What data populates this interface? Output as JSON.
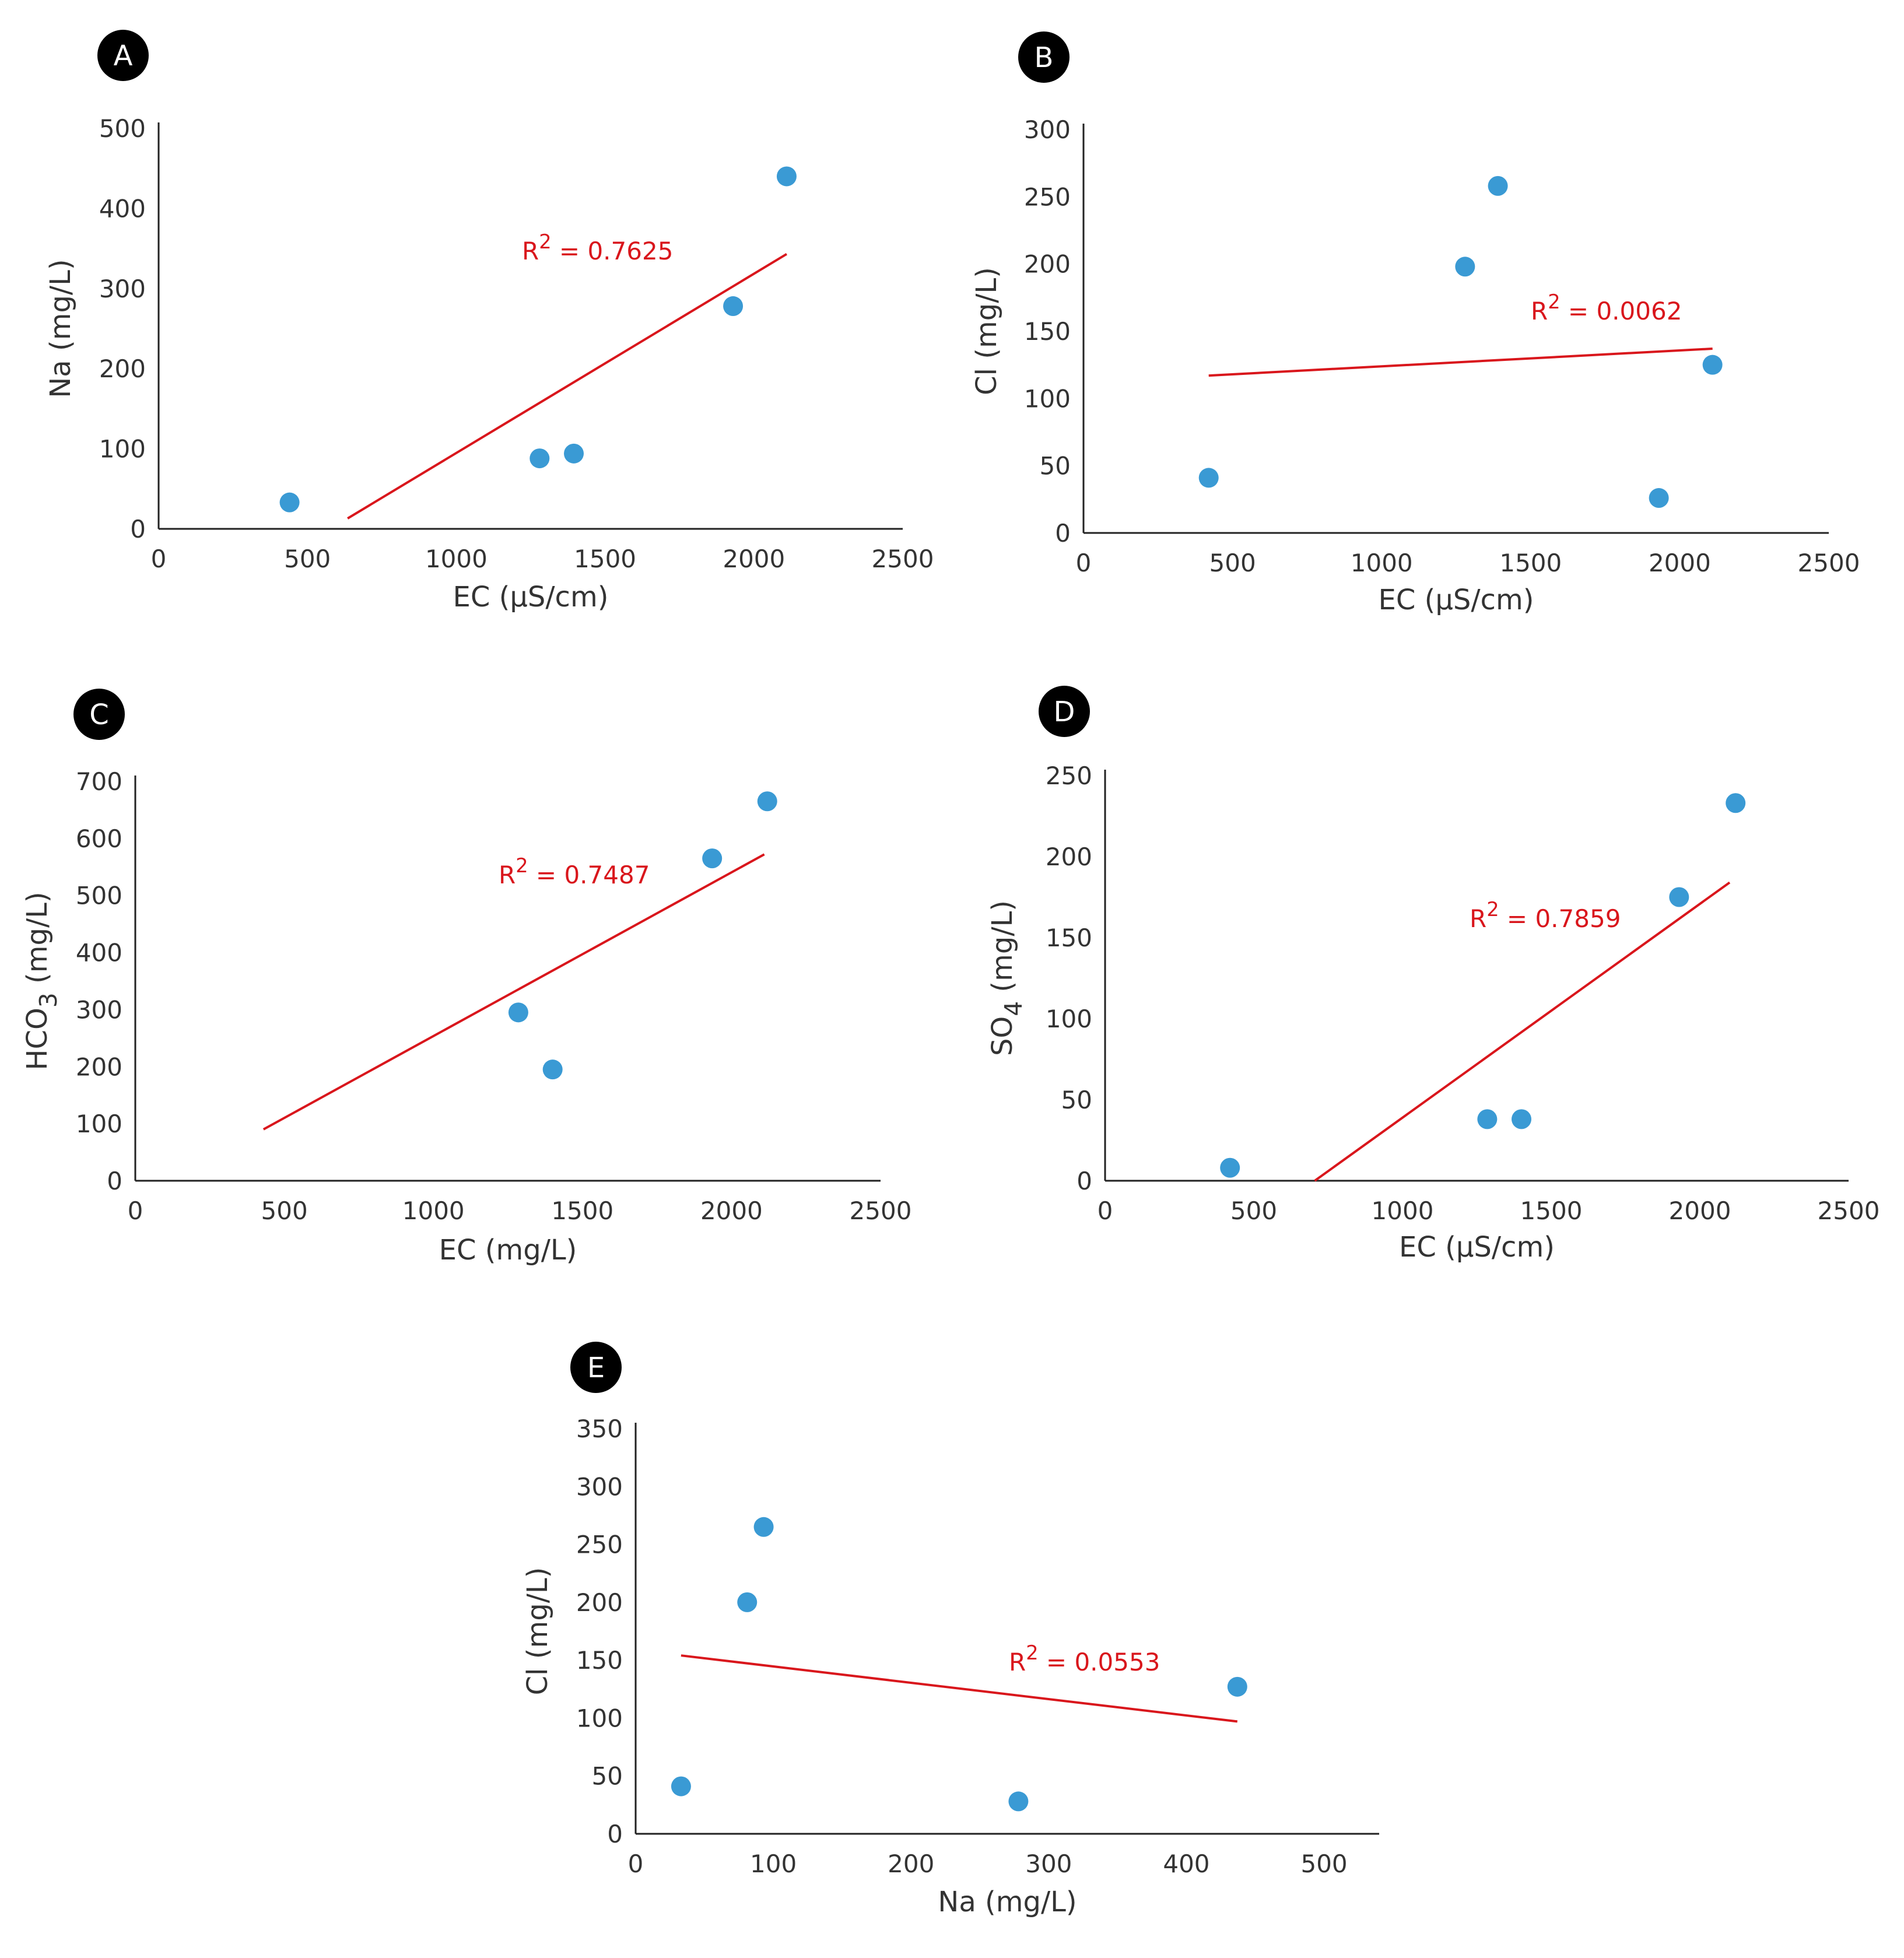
{
  "colors": {
    "point": "#3a9ad4",
    "trend": "#d9161c",
    "axis": "#222222",
    "text": "#333333",
    "badge": "#000000",
    "badge_text": "#ffffff"
  },
  "chart_data": [
    {
      "type": "scatter",
      "panel_label": "A",
      "xlabel": "EC (µS/cm)",
      "ylabel": "Na (mg/L)",
      "xlim": [
        0,
        2500
      ],
      "ylim": [
        0,
        500
      ],
      "xticks": [
        "0",
        "500",
        "1000",
        "1500",
        "2000",
        "2500"
      ],
      "yticks": [
        "0",
        "100",
        "200",
        "300",
        "400",
        "500"
      ],
      "points": [
        {
          "x": 440,
          "y": 33
        },
        {
          "x": 1280,
          "y": 88
        },
        {
          "x": 1395,
          "y": 94
        },
        {
          "x": 1930,
          "y": 278
        },
        {
          "x": 2110,
          "y": 440
        }
      ],
      "trendline": {
        "x": [
          635,
          2110
        ],
        "y": [
          13,
          343
        ]
      },
      "r2_label": "R2 = 0.7625"
    },
    {
      "type": "scatter",
      "panel_label": "B",
      "xlabel": "EC (µS/cm)",
      "ylabel": "Cl (mg/L)",
      "xlim": [
        0,
        2500
      ],
      "ylim": [
        0,
        300
      ],
      "xticks": [
        "0",
        "500",
        "1000",
        "1500",
        "2000",
        "2500"
      ],
      "yticks": [
        "0",
        "50",
        "100",
        "150",
        "200",
        "250",
        "300"
      ],
      "points": [
        {
          "x": 420,
          "y": 41
        },
        {
          "x": 1280,
          "y": 198
        },
        {
          "x": 1390,
          "y": 258
        },
        {
          "x": 1930,
          "y": 26
        },
        {
          "x": 2110,
          "y": 125
        }
      ],
      "trendline": {
        "x": [
          420,
          2110
        ],
        "y": [
          117,
          137
        ]
      },
      "r2_label": "R2 = 0.0062"
    },
    {
      "type": "scatter",
      "panel_label": "C",
      "xlabel": "EC (mg/L)",
      "ylabel": "HCO3 (mg/L)",
      "xlim": [
        0,
        2500
      ],
      "ylim": [
        0,
        700
      ],
      "xticks": [
        "0",
        "500",
        "1000",
        "1500",
        "2000",
        "2500"
      ],
      "yticks": [
        "0",
        "100",
        "200",
        "300",
        "400",
        "500",
        "600",
        "700"
      ],
      "points": [
        {
          "x": 1285,
          "y": 295
        },
        {
          "x": 1400,
          "y": 195
        },
        {
          "x": 1935,
          "y": 565
        },
        {
          "x": 2120,
          "y": 665
        }
      ],
      "trendline": {
        "x": [
          430,
          2110
        ],
        "y": [
          90,
          572
        ]
      },
      "r2_label": "R2 = 0.7487"
    },
    {
      "type": "scatter",
      "panel_label": "D",
      "xlabel": "EC (µS/cm)",
      "ylabel": "SO4  (mg/L)",
      "xlim": [
        0,
        2500
      ],
      "ylim": [
        0,
        250
      ],
      "xticks": [
        "0",
        "500",
        "1000",
        "1500",
        "2000",
        "2500"
      ],
      "yticks": [
        "0",
        "50",
        "100",
        "150",
        "200",
        "250"
      ],
      "points": [
        {
          "x": 420,
          "y": 8
        },
        {
          "x": 1285,
          "y": 38
        },
        {
          "x": 1400,
          "y": 38
        },
        {
          "x": 1930,
          "y": 175
        },
        {
          "x": 2120,
          "y": 233
        }
      ],
      "trendline": {
        "x": [
          705,
          2100
        ],
        "y": [
          0,
          184
        ]
      },
      "r2_label": "R2 = 0.7859"
    },
    {
      "type": "scatter",
      "panel_label": "E",
      "xlabel": "Na (mg/L)",
      "ylabel": "Cl (mg/L)",
      "xlim": [
        0,
        540
      ],
      "ylim": [
        0,
        350
      ],
      "xticks": [
        "0",
        "100",
        "200",
        "300",
        "400",
        "500"
      ],
      "yticks": [
        "0",
        "50",
        "100",
        "150",
        "200",
        "250",
        "300",
        "350"
      ],
      "points": [
        {
          "x": 33,
          "y": 41
        },
        {
          "x": 81,
          "y": 200
        },
        {
          "x": 93,
          "y": 265
        },
        {
          "x": 278,
          "y": 28
        },
        {
          "x": 437,
          "y": 127
        }
      ],
      "trendline": {
        "x": [
          33,
          437
        ],
        "y": [
          154,
          97
        ]
      },
      "r2_label": "R2 = 0.0553"
    }
  ]
}
